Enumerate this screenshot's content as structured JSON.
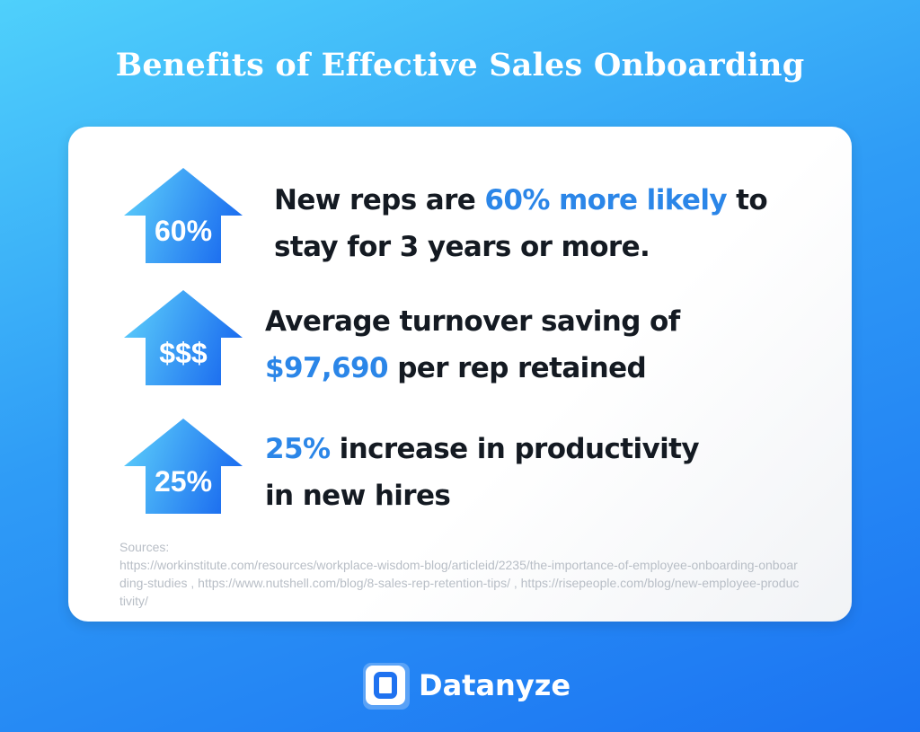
{
  "title": "Benefits of Effective Sales Onboarding",
  "stats": [
    {
      "icon": "up-arrow-icon",
      "badge": "60%",
      "text_before": "New reps are ",
      "highlight": "60% more likely",
      "text_after": " to stay for 3 years or more."
    },
    {
      "icon": "up-arrow-icon",
      "badge": "$$$",
      "text_before": "Average turnover saving of ",
      "highlight": "$97,690",
      "text_after": " per rep retained"
    },
    {
      "icon": "up-arrow-icon",
      "badge": "25%",
      "text_before": "",
      "highlight": "25%",
      "text_after": " increase in productivity in new hires"
    }
  ],
  "sources": {
    "label": "Sources:",
    "text": "https://workinstitute.com/resources/workplace-wisdom-blog/articleid/2235/the-importance-of-employee-onboarding-onboarding-studies , https://www.nutshell.com/blog/8-sales-rep-retention-tips/ , https://risepeople.com/blog/new-employee-productivity/"
  },
  "logo": {
    "icon": "datanyze-logo-icon",
    "name": "Datanyze"
  },
  "colors": {
    "highlight": "#2b86e8",
    "text": "#141a22",
    "arrow_light": "#5fd3fb",
    "arrow_dark": "#1f72f0"
  }
}
